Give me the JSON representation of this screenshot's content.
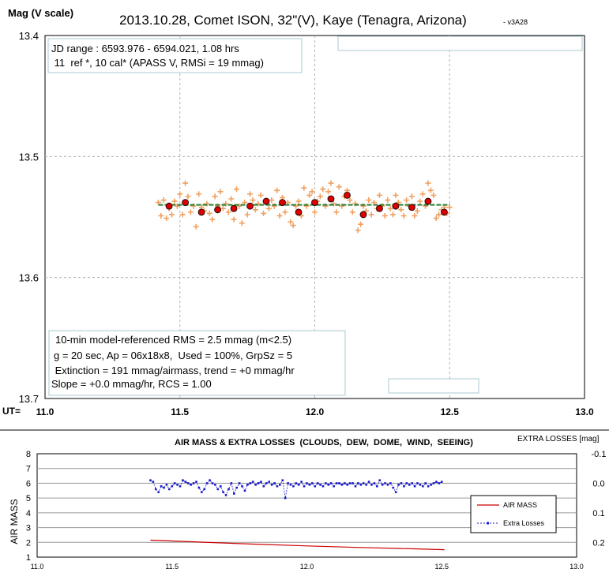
{
  "chart_data": [
    {
      "type": "scatter",
      "title": "2013.10.28, Comet ISON, 32\"(V), Kaye (Tenagra, Arizona)",
      "version": "- v3A28",
      "ylabel": "Mag (V scale)",
      "xlabel_prefix": "UT=",
      "xlim": [
        11.0,
        13.0
      ],
      "ylim": [
        13.4,
        13.7
      ],
      "y_inverted": true,
      "grid": true,
      "x_ticks": [
        "11.0",
        "11.5",
        "12.0",
        "12.5",
        "13.0"
      ],
      "x_tick_values": [
        11.0,
        11.5,
        12.0,
        12.5,
        13.0
      ],
      "y_ticks": [
        "13.4",
        "13.5",
        "13.6",
        "13.7"
      ],
      "y_tick_values": [
        13.4,
        13.5,
        13.6,
        13.7
      ],
      "info_top": [
        "JD range : 6593.976 - 6594.021, 1.08 hrs",
        " 11  ref *, 10 cal* (APASS V, RMSi = 19 mmag)"
      ],
      "info_bottom": [
        "10-min model-referenced RMS = 2.5 mmag (m<2.5)",
        "g = 20 sec, Ap = 06x18x8,  Used = 100%, GrpSz = 5",
        " Extinction = 191 mmag/airmass, trend = +0 mmag/hr",
        "Slope = +0.0 mmag/hr, RCS = 1.00"
      ],
      "colors": {
        "raw": "#f0a060",
        "binned": "#dd0000",
        "trend": "#2e7d32",
        "grid": "#b0b0b0"
      },
      "series": [
        {
          "marker": "plus",
          "x": [
            11.42,
            11.43,
            11.44,
            11.45,
            11.46,
            11.47,
            11.48,
            11.49,
            11.5,
            11.51,
            11.52,
            11.53,
            11.54,
            11.55,
            11.56,
            11.57,
            11.58,
            11.59,
            11.6,
            11.61,
            11.62,
            11.63,
            11.64,
            11.65,
            11.66,
            11.67,
            11.68,
            11.69,
            11.7,
            11.71,
            11.72,
            11.73,
            11.74,
            11.75,
            11.76,
            11.77,
            11.78,
            11.79,
            11.8,
            11.81,
            11.82,
            11.83,
            11.84,
            11.85,
            11.86,
            11.87,
            11.88,
            11.89,
            11.9,
            11.91,
            11.92,
            11.93,
            11.94,
            11.95,
            11.96,
            11.97,
            11.98,
            11.99,
            12.0,
            12.01,
            12.02,
            12.03,
            12.04,
            12.05,
            12.06,
            12.07,
            12.08,
            12.09,
            12.1,
            12.11,
            12.12,
            12.13,
            12.14,
            12.15,
            12.16,
            12.17,
            12.18,
            12.19,
            12.2,
            12.21,
            12.22,
            12.23,
            12.24,
            12.25,
            12.26,
            12.27,
            12.28,
            12.29,
            12.3,
            12.31,
            12.32,
            12.33,
            12.34,
            12.35,
            12.36,
            12.37,
            12.38,
            12.39,
            12.4,
            12.41,
            12.42,
            12.43,
            12.44,
            12.45,
            12.46,
            12.47,
            12.48,
            12.49,
            12.5
          ],
          "y": [
            13.538,
            13.549,
            13.536,
            13.551,
            13.543,
            13.548,
            13.537,
            13.541,
            13.531,
            13.548,
            13.522,
            13.533,
            13.546,
            13.541,
            13.558,
            13.531,
            13.542,
            13.545,
            13.539,
            13.547,
            13.552,
            13.533,
            13.541,
            13.529,
            13.543,
            13.539,
            13.546,
            13.535,
            13.552,
            13.527,
            13.541,
            13.555,
            13.538,
            13.548,
            13.531,
            13.536,
            13.544,
            13.539,
            13.532,
            13.547,
            13.538,
            13.543,
            13.536,
            13.541,
            13.528,
            13.549,
            13.534,
            13.546,
            13.538,
            13.554,
            13.557,
            13.541,
            13.537,
            13.549,
            13.526,
            13.541,
            13.532,
            13.529,
            13.546,
            13.537,
            13.533,
            13.527,
            13.541,
            13.529,
            13.522,
            13.539,
            13.546,
            13.525,
            13.541,
            13.533,
            13.528,
            13.536,
            13.546,
            13.539,
            13.561,
            13.556,
            13.541,
            13.545,
            13.536,
            13.548,
            13.538,
            13.543,
            13.532,
            13.541,
            13.549,
            13.536,
            13.543,
            13.548,
            13.532,
            13.538,
            13.544,
            13.549,
            13.536,
            13.541,
            13.533,
            13.549,
            13.545,
            13.537,
            13.531,
            13.541,
            13.522,
            13.528,
            13.532,
            13.551,
            13.548,
            13.544,
            13.542,
            13.547,
            13.542
          ]
        },
        {
          "marker": "dot",
          "x": [
            11.46,
            11.52,
            11.58,
            11.64,
            11.7,
            11.76,
            11.82,
            11.88,
            11.94,
            12.0,
            12.06,
            12.12,
            12.18,
            12.24,
            12.3,
            12.36,
            12.42,
            12.48
          ],
          "y": [
            13.541,
            13.538,
            13.546,
            13.544,
            13.543,
            13.541,
            13.537,
            13.538,
            13.546,
            13.538,
            13.535,
            13.532,
            13.548,
            13.543,
            13.541,
            13.542,
            13.537,
            13.546
          ]
        }
      ],
      "trend": {
        "x": [
          11.42,
          12.5
        ],
        "y": [
          13.54,
          13.54
        ]
      }
    },
    {
      "type": "line",
      "title": "AIR MASS & EXTRA LOSSES  (CLOUDS,  DEW,  DOME,  WIND,  SEEING)",
      "ylabel": "AIR MASS",
      "y2label": "EXTRA LOSSES [mag]",
      "xlim": [
        11.0,
        13.0
      ],
      "ylim": [
        1,
        8
      ],
      "y2lim": [
        0.25,
        -0.1
      ],
      "x_ticks": [
        "11.0",
        "11.5",
        "12.0",
        "12.5",
        "13.0"
      ],
      "x_tick_values": [
        11.0,
        11.5,
        12.0,
        12.5,
        13.0
      ],
      "y_ticks": [
        "1",
        "2",
        "3",
        "4",
        "5",
        "6",
        "7",
        "8"
      ],
      "y_tick_values": [
        1,
        2,
        3,
        4,
        5,
        6,
        7,
        8
      ],
      "y2_ticks": [
        "-0.1",
        "0.0",
        "0.1",
        "0.2"
      ],
      "y2_tick_values": [
        -0.1,
        0.0,
        0.1,
        0.2
      ],
      "legend": [
        "AIR MASS",
        "Extra Losses"
      ],
      "colors": {
        "airmass": "#cc0000",
        "extra": "#1a1acc",
        "grid": "#9a9a9a"
      },
      "series": [
        {
          "name": "AIR MASS",
          "x": [
            11.42,
            11.6,
            11.8,
            12.0,
            12.2,
            12.4,
            12.51
          ],
          "y": [
            2.15,
            2.02,
            1.88,
            1.76,
            1.65,
            1.56,
            1.5
          ]
        },
        {
          "name": "Extra Losses",
          "axis": "y2",
          "x": [
            11.42,
            11.43,
            11.44,
            11.45,
            11.46,
            11.47,
            11.48,
            11.49,
            11.5,
            11.51,
            11.52,
            11.53,
            11.54,
            11.55,
            11.56,
            11.57,
            11.58,
            11.59,
            11.6,
            11.61,
            11.62,
            11.63,
            11.64,
            11.65,
            11.66,
            11.67,
            11.68,
            11.69,
            11.7,
            11.71,
            11.72,
            11.73,
            11.74,
            11.75,
            11.76,
            11.77,
            11.78,
            11.79,
            11.8,
            11.81,
            11.82,
            11.83,
            11.84,
            11.85,
            11.86,
            11.87,
            11.88,
            11.89,
            11.9,
            11.91,
            11.92,
            11.93,
            11.94,
            11.95,
            11.96,
            11.97,
            11.98,
            11.99,
            12.0,
            12.01,
            12.02,
            12.03,
            12.04,
            12.05,
            12.06,
            12.07,
            12.08,
            12.09,
            12.1,
            12.11,
            12.12,
            12.13,
            12.14,
            12.15,
            12.16,
            12.17,
            12.18,
            12.19,
            12.2,
            12.21,
            12.22,
            12.23,
            12.24,
            12.25,
            12.26,
            12.27,
            12.28,
            12.29,
            12.3,
            12.31,
            12.32,
            12.33,
            12.34,
            12.35,
            12.36,
            12.37,
            12.38,
            12.39,
            12.4,
            12.41,
            12.42,
            12.43,
            12.44,
            12.45,
            12.46,
            12.47,
            12.48,
            12.49,
            12.5
          ],
          "y": [
            -0.01,
            -0.005,
            0.02,
            0.03,
            0.01,
            0.015,
            0.005,
            0.02,
            0.01,
            0.0,
            0.005,
            0.01,
            -0.01,
            -0.005,
            0.0,
            0.005,
            0.0,
            -0.005,
            0.015,
            0.03,
            0.02,
            0.0,
            -0.01,
            0.0,
            0.005,
            0.02,
            0.01,
            0.03,
            0.04,
            0.02,
            0.0,
            0.035,
            0.015,
            0.0,
            0.01,
            0.025,
            0.005,
            0.0,
            -0.005,
            0.005,
            0.0,
            -0.005,
            0.01,
            0.0,
            -0.005,
            0.005,
            0.0,
            0.01,
            0.005,
            -0.01,
            0.05,
            0.0,
            0.005,
            0.01,
            0.0,
            0.005,
            -0.005,
            0.01,
            0.0,
            0.005,
            0.0,
            0.01,
            0.0,
            0.005,
            0.01,
            0.0,
            0.005,
            0.0,
            0.01,
            0.0,
            0.0,
            0.005,
            0.0,
            0.005,
            0.0,
            0.0,
            0.01,
            0.0,
            0.005,
            0.0,
            0.005,
            -0.005,
            0.005,
            0.0,
            0.01,
            -0.01,
            0.005,
            0.0,
            0.005,
            0.0,
            0.015,
            0.03,
            0.005,
            0.0,
            0.01,
            0.0,
            0.005,
            0.0,
            0.01,
            0.0,
            0.005,
            0.01,
            0.0,
            0.01,
            0.005,
            0.0,
            -0.005,
            0.0,
            -0.005
          ]
        }
      ]
    }
  ]
}
